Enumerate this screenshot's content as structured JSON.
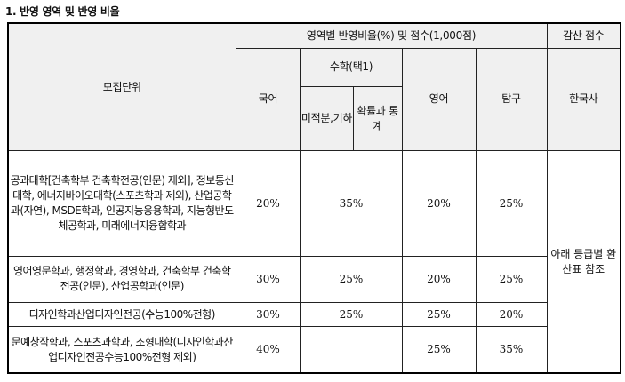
{
  "section_title": "1. 반영 영역 및 반영 비율",
  "header": {
    "reflect_group": "영역별 반영비율(%) 및 점수(1,000점)",
    "deduct_group": "감산 점수",
    "unit": "모집단위",
    "korean": "국어",
    "math_group": "수학(택1)",
    "math_calc": "미적분,기하",
    "math_prob": "확률과 통계",
    "english": "영어",
    "inquiry": "탐구",
    "history": "한국사"
  },
  "rows": [
    {
      "unit": "공과대학[건축학부 건축학전공(인문) 제외], 정보통신대학, 에너지바이오대학(스포츠학과 제외), 산업공학과(자연), MSDE학과, 인공지능응용학과, 지능형반도체공학과, 미래에너지융합학과",
      "korean": "20%",
      "math": "35%",
      "english": "20%",
      "inquiry": "25%"
    },
    {
      "unit": "영어영문학과, 행정학과, 경영학과, 건축학부 건축학전공(인문), 산업공학과(인문)",
      "korean": "30%",
      "math": "25%",
      "english": "20%",
      "inquiry": "25%"
    },
    {
      "unit": "디자인학과산업디자인전공(수능100%전형)",
      "korean": "30%",
      "math": "25%",
      "english": "25%",
      "inquiry": "20%"
    },
    {
      "unit": "문예창작학과, 스포츠과학과, 조형대학(디자인학과산업디자인전공수능100%전형 제외)",
      "korean": "40%",
      "math": "",
      "english": "25%",
      "inquiry": "35%"
    }
  ],
  "history_note": "아래 등급별 환산표 참조"
}
